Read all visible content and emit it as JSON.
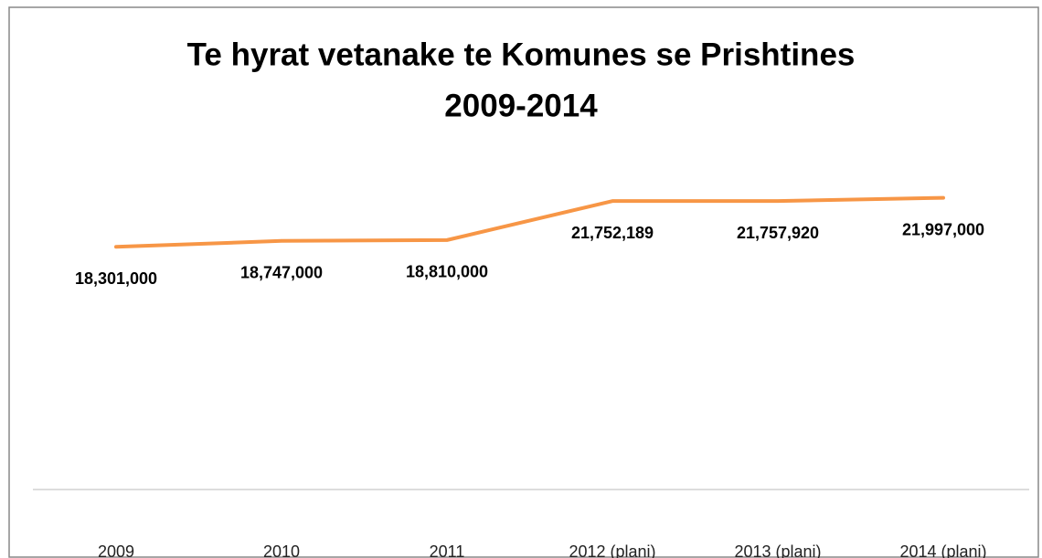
{
  "chart_data": {
    "type": "line",
    "title": [
      "Te hyrat vetanake te Komunes se Prishtines",
      "2009-2014"
    ],
    "categories": [
      "2009",
      "2010",
      "2011",
      "2012 (plani)",
      "2013 (plani)",
      "2014 (plani)"
    ],
    "series": [
      {
        "color": "#f79646",
        "values": [
          18301000,
          18747000,
          18810000,
          21752189,
          21757920,
          21997000
        ],
        "value_labels": [
          "18,301,000",
          "18,747,000",
          "18,810,000",
          "21,752,189",
          "21,757,920",
          "21,997,000"
        ]
      }
    ],
    "ylim": [
      0,
      25000000
    ]
  }
}
